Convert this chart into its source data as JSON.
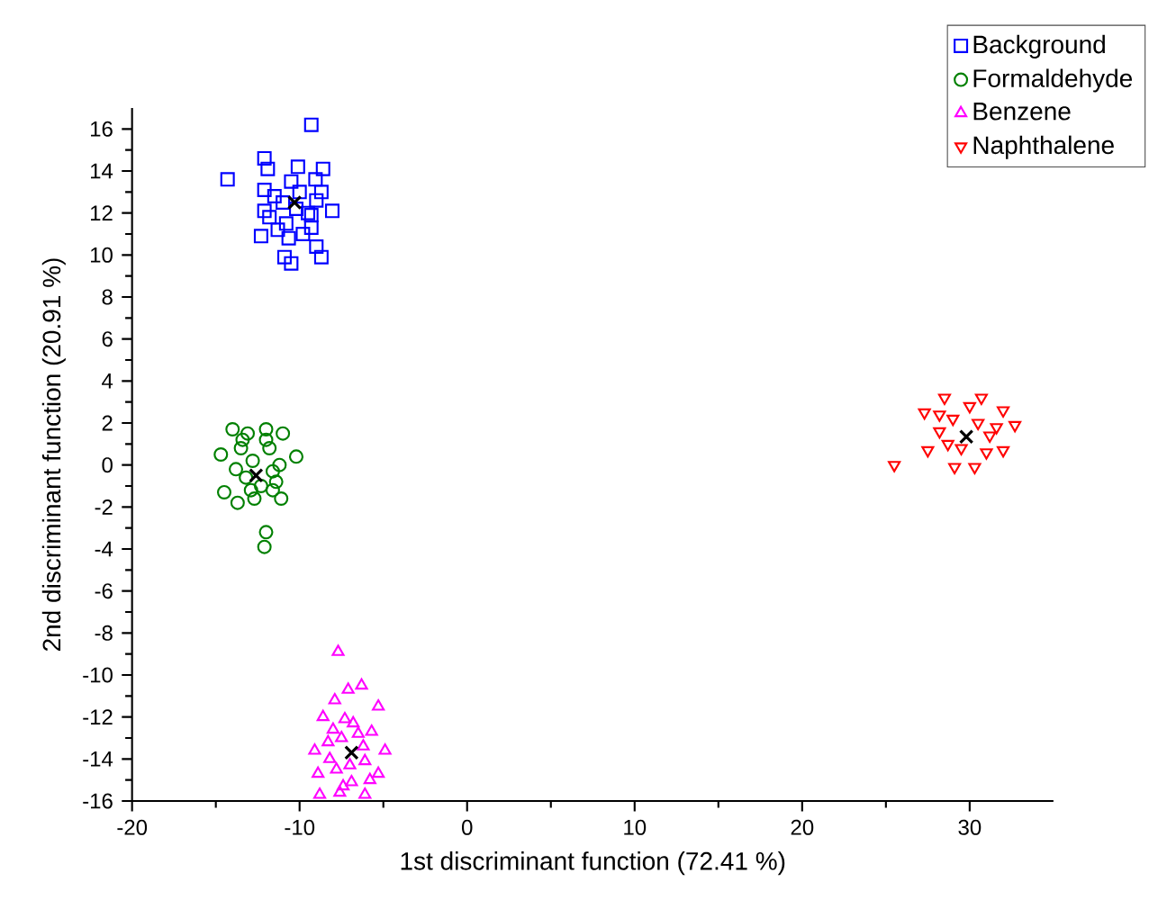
{
  "chart_data": {
    "type": "scatter",
    "xlabel": "1st discriminant function (72.41 %)",
    "ylabel": "2nd discriminant function (20.91 %)",
    "xlim": [
      -20,
      35
    ],
    "ylim": [
      -16,
      17
    ],
    "xticks": [
      -20,
      -10,
      0,
      10,
      20,
      30
    ],
    "yticks": [
      -16,
      -14,
      -12,
      -10,
      -8,
      -6,
      -4,
      -2,
      0,
      2,
      4,
      6,
      8,
      10,
      12,
      14,
      16
    ],
    "legend": "top right",
    "grid": false,
    "series": [
      {
        "name": "Background",
        "color": "#0000ff",
        "marker": "square",
        "x": [
          -9.3,
          -14.3,
          -12.1,
          -11.9,
          -10.1,
          -8.6,
          -9.05,
          -12.1,
          -8.7,
          -12.1,
          -8.05,
          -9.3,
          -12.3,
          -11.3,
          -10.65,
          -9.3,
          -9.0,
          -10.9,
          -10.5,
          -8.7,
          -11.0,
          -10.0,
          -9.5,
          -10.8,
          -11.5,
          -9.8,
          -10.5,
          -9.0,
          -11.8,
          -10.2
        ],
        "values": [
          16.2,
          13.6,
          14.6,
          14.1,
          14.2,
          14.1,
          13.6,
          13.1,
          13.0,
          12.1,
          12.1,
          11.9,
          10.9,
          11.2,
          10.8,
          11.3,
          10.4,
          9.9,
          9.6,
          9.9,
          12.5,
          13.0,
          12.0,
          11.5,
          12.8,
          11.0,
          13.5,
          12.6,
          11.8,
          12.2
        ]
      },
      {
        "name": "Formaldehyde",
        "color": "#008000",
        "marker": "circle",
        "x": [
          -14.0,
          -13.1,
          -12.0,
          -11.0,
          -14.7,
          -10.2,
          -14.5,
          -13.7,
          -12.7,
          -11.1,
          -11.6,
          -12.0,
          -12.1,
          -13.5,
          -12.8,
          -11.8,
          -13.2,
          -11.6,
          -12.3,
          -13.8,
          -12.0,
          -11.2,
          -12.9,
          -13.4,
          -11.4
        ],
        "values": [
          1.7,
          1.5,
          1.7,
          1.5,
          0.5,
          0.4,
          -1.3,
          -1.8,
          -1.6,
          -1.6,
          -1.2,
          -3.2,
          -3.9,
          0.8,
          0.2,
          0.8,
          -0.6,
          -0.3,
          -1.0,
          -0.2,
          1.2,
          0.0,
          -1.2,
          1.2,
          -0.8
        ]
      },
      {
        "name": "Benzene",
        "color": "#ff00ff",
        "marker": "triangle",
        "x": [
          -7.7,
          -7.1,
          -6.3,
          -7.9,
          -5.3,
          -8.6,
          -7.3,
          -5.7,
          -9.1,
          -4.9,
          -8.2,
          -6.1,
          -8.9,
          -5.3,
          -8.8,
          -7.6,
          -6.1,
          -6.9,
          -7.5,
          -6.5,
          -7.8,
          -6.2,
          -7.0,
          -8.3,
          -5.8,
          -6.8,
          -7.4,
          -8.0
        ],
        "values": [
          -8.9,
          -10.7,
          -10.5,
          -11.2,
          -11.5,
          -12.0,
          -12.1,
          -12.7,
          -13.6,
          -13.6,
          -14.0,
          -14.1,
          -14.7,
          -14.7,
          -15.7,
          -15.6,
          -15.7,
          -15.1,
          -13.0,
          -12.8,
          -14.5,
          -13.4,
          -14.3,
          -13.2,
          -15.0,
          -12.3,
          -15.3,
          -12.6
        ]
      },
      {
        "name": "Naphthalene",
        "color": "#ff0000",
        "marker": "triangle down",
        "x": [
          25.5,
          28.5,
          30.7,
          27.3,
          32.0,
          32.7,
          27.5,
          29.1,
          30.3,
          32.0,
          31.2,
          28.2,
          29.0,
          30.5,
          29.5,
          31.0,
          28.7,
          30.0,
          31.6,
          28.2
        ],
        "values": [
          0.0,
          3.2,
          3.2,
          2.5,
          2.6,
          1.9,
          0.7,
          -0.1,
          -0.1,
          0.7,
          1.4,
          1.6,
          2.2,
          2.0,
          0.8,
          0.6,
          1.0,
          2.8,
          1.8,
          2.4
        ]
      },
      {
        "color": "#000000",
        "marker": "cross",
        "x": [
          -10.3,
          -12.6,
          -6.9,
          29.8
        ],
        "values": [
          12.5,
          -0.5,
          -13.7,
          1.35
        ]
      }
    ]
  }
}
